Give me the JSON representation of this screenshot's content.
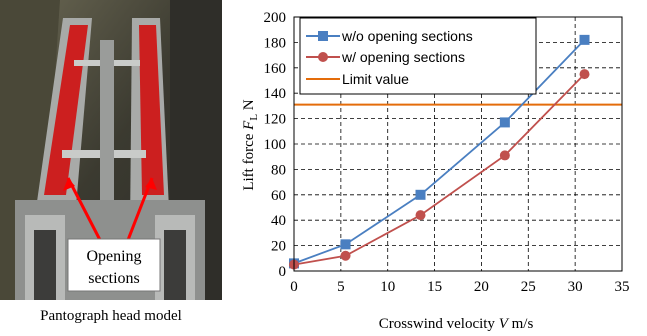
{
  "photo": {
    "caption": "Pantograph head model",
    "callout": [
      "Opening",
      "sections"
    ]
  },
  "chart_data": {
    "type": "line",
    "xlabel": "Crosswind velocity",
    "xlabel_var": "V",
    "xlabel_unit": "m/s",
    "ylabel": "Lift force",
    "ylabel_var": "F",
    "ylabel_sub": "L",
    "ylabel_unit": "N",
    "xlim": [
      0,
      35
    ],
    "ylim": [
      0,
      200
    ],
    "xticks": [
      0,
      5,
      10,
      15,
      20,
      25,
      30,
      35
    ],
    "yticks": [
      0,
      20,
      40,
      60,
      80,
      100,
      120,
      140,
      160,
      180,
      200
    ],
    "grid": true,
    "legend_position": "top-left",
    "series": [
      {
        "name": "w/o opening sections",
        "color": "#4a7fc1",
        "marker": "square",
        "x": [
          0,
          5.5,
          13.5,
          22.5,
          31
        ],
        "y": [
          6,
          21,
          60,
          117,
          182
        ]
      },
      {
        "name": "w/ opening sections",
        "color": "#c0504d",
        "marker": "circle",
        "x": [
          0,
          5.5,
          13.5,
          22.5,
          31
        ],
        "y": [
          5,
          12,
          44,
          91,
          155
        ]
      }
    ],
    "reference_lines": [
      {
        "name": "Limit value",
        "color": "#e46c0a",
        "y": 131
      }
    ]
  }
}
